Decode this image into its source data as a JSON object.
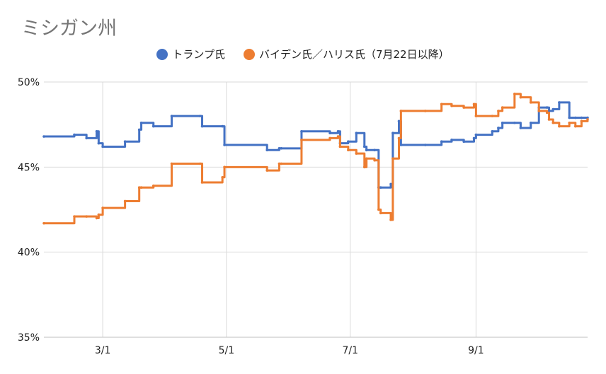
{
  "chart_data": {
    "type": "line",
    "title": "ミシガン州",
    "ylim": [
      35,
      50
    ],
    "yticks": [
      35,
      40,
      45,
      50
    ],
    "ytick_labels": [
      "35%",
      "40%",
      "45%",
      "50%"
    ],
    "xticks": [
      "3/1",
      "5/1",
      "7/1",
      "9/1"
    ],
    "x_domain": [
      "2024-02-01",
      "2024-10-26"
    ],
    "grid": true,
    "legend_position": "top",
    "x": [
      "2024-02-01",
      "2024-02-16",
      "2024-02-22",
      "2024-02-27",
      "2024-02-28",
      "2024-03-01",
      "2024-03-12",
      "2024-03-19",
      "2024-03-20",
      "2024-03-26",
      "2024-04-04",
      "2024-04-18",
      "2024-04-19",
      "2024-04-29",
      "2024-04-30",
      "2024-05-21",
      "2024-05-27",
      "2024-05-28",
      "2024-06-07",
      "2024-06-21",
      "2024-06-25",
      "2024-06-26",
      "2024-06-30",
      "2024-07-04",
      "2024-07-08",
      "2024-07-09",
      "2024-07-13",
      "2024-07-15",
      "2024-07-16",
      "2024-07-21",
      "2024-07-22",
      "2024-07-25",
      "2024-07-26",
      "2024-08-07",
      "2024-08-15",
      "2024-08-20",
      "2024-08-26",
      "2024-08-31",
      "2024-09-01",
      "2024-09-09",
      "2024-09-12",
      "2024-09-14",
      "2024-09-20",
      "2024-09-23",
      "2024-09-28",
      "2024-10-02",
      "2024-10-06",
      "2024-10-07",
      "2024-10-09",
      "2024-10-12",
      "2024-10-17",
      "2024-10-20",
      "2024-10-23",
      "2024-10-26"
    ],
    "series": [
      {
        "name": "トランプ氏",
        "color": "#4472c4",
        "values": [
          46.8,
          46.9,
          46.7,
          47.1,
          46.4,
          46.2,
          46.5,
          47.2,
          47.6,
          47.4,
          48.0,
          48.0,
          47.4,
          47.4,
          46.3,
          46.0,
          46.1,
          46.1,
          47.1,
          47.0,
          47.1,
          46.4,
          46.5,
          47.0,
          46.2,
          46.0,
          46.0,
          43.8,
          43.8,
          44.0,
          47.0,
          47.7,
          46.3,
          46.3,
          46.5,
          46.6,
          46.5,
          46.7,
          46.9,
          47.1,
          47.3,
          47.6,
          47.6,
          47.3,
          47.6,
          48.5,
          48.5,
          48.3,
          48.4,
          48.8,
          47.9,
          47.9,
          47.9,
          47.9
        ]
      },
      {
        "name": "バイデン氏／ハリス氏（7月22日以降）",
        "color": "#ed7d31",
        "values": [
          41.7,
          42.1,
          42.1,
          42.0,
          42.2,
          42.6,
          43.0,
          43.8,
          43.8,
          43.9,
          45.2,
          45.2,
          44.1,
          44.4,
          45.0,
          44.8,
          45.2,
          45.2,
          46.6,
          46.7,
          46.8,
          46.2,
          46.0,
          45.8,
          45.0,
          45.5,
          45.4,
          42.5,
          42.3,
          41.9,
          45.5,
          46.7,
          48.3,
          48.3,
          48.7,
          48.6,
          48.5,
          48.7,
          48.0,
          48.0,
          48.3,
          48.5,
          49.3,
          49.1,
          48.8,
          48.3,
          48.2,
          47.8,
          47.6,
          47.4,
          47.6,
          47.4,
          47.7,
          47.8
        ]
      }
    ]
  }
}
